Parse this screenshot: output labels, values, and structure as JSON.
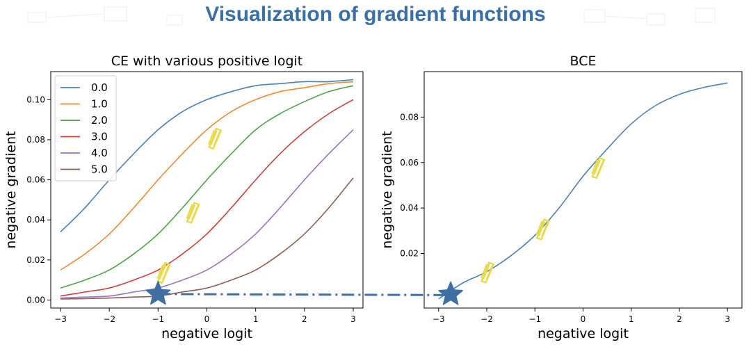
{
  "slide": {
    "title": "Visualization of gradient functions"
  },
  "colors": {
    "title": "#3a6fa5",
    "connector": "#3f6fa3",
    "star": "#3f6fa3",
    "highlight": "#e8d94a"
  },
  "chart_data": [
    {
      "type": "line",
      "title": "CE with various positive logit",
      "xlabel": "negative logit",
      "ylabel": "negative gradient",
      "xlim": [
        -3.2,
        3.2
      ],
      "ylim": [
        -0.004,
        0.114
      ],
      "xticks": [
        -3,
        -2,
        -1,
        0,
        1,
        2,
        3
      ],
      "xtick_labels": [
        "−3",
        "−2",
        "−1",
        "0",
        "1",
        "2",
        "3"
      ],
      "yticks": [
        0.0,
        0.02,
        0.04,
        0.06,
        0.08,
        0.1
      ],
      "ytick_labels": [
        "0.00",
        "0.02",
        "0.04",
        "0.06",
        "0.08",
        "0.10"
      ],
      "legend": {
        "placement": "upper-left",
        "title": ""
      },
      "x": [
        -3,
        -2.5,
        -2,
        -1.5,
        -1,
        -0.5,
        0,
        0.5,
        1,
        1.5,
        2,
        2.5,
        3
      ],
      "series": [
        {
          "name": "0.0",
          "color": "#4a80b4",
          "values": [
            0.034,
            0.046,
            0.06,
            0.073,
            0.085,
            0.094,
            0.1,
            0.104,
            0.107,
            0.108,
            0.109,
            0.109,
            0.11
          ]
        },
        {
          "name": "1.0",
          "color": "#ee8b34",
          "values": [
            0.015,
            0.023,
            0.033,
            0.046,
            0.06,
            0.073,
            0.085,
            0.094,
            0.1,
            0.104,
            0.106,
            0.108,
            0.109
          ]
        },
        {
          "name": "2.0",
          "color": "#4ea346",
          "values": [
            0.006,
            0.01,
            0.015,
            0.023,
            0.033,
            0.046,
            0.06,
            0.073,
            0.085,
            0.093,
            0.099,
            0.104,
            0.107
          ]
        },
        {
          "name": "3.0",
          "color": "#c8413c",
          "values": [
            0.002,
            0.004,
            0.006,
            0.01,
            0.015,
            0.023,
            0.033,
            0.046,
            0.06,
            0.073,
            0.084,
            0.093,
            0.1
          ]
        },
        {
          "name": "4.0",
          "color": "#9b72bf",
          "values": [
            0.001,
            0.0015,
            0.002,
            0.004,
            0.006,
            0.01,
            0.015,
            0.023,
            0.033,
            0.046,
            0.06,
            0.073,
            0.085
          ]
        },
        {
          "name": "5.0",
          "color": "#8c5e52",
          "values": [
            0.0005,
            0.0007,
            0.001,
            0.0015,
            0.002,
            0.004,
            0.006,
            0.01,
            0.015,
            0.023,
            0.033,
            0.046,
            0.061
          ]
        }
      ],
      "markers": [
        {
          "type": "star",
          "x": -1.0,
          "y": 0.003
        },
        {
          "type": "highlight",
          "x": -0.9,
          "y": 0.014
        },
        {
          "type": "highlight",
          "x": -0.3,
          "y": 0.044
        },
        {
          "type": "highlight",
          "x": 0.15,
          "y": 0.081
        }
      ]
    },
    {
      "type": "line",
      "title": "BCE",
      "xlabel": "negative logit",
      "ylabel": "negative gradient",
      "xlim": [
        -3.3,
        3.3
      ],
      "ylim": [
        -0.004,
        0.1
      ],
      "xticks": [
        -3,
        -2,
        -1,
        0,
        1,
        2,
        3
      ],
      "xtick_labels": [
        "−3",
        "−2",
        "−1",
        "0",
        "1",
        "2",
        "3"
      ],
      "yticks": [
        0.02,
        0.04,
        0.06,
        0.08
      ],
      "ytick_labels": [
        "0.02",
        "0.04",
        "0.06",
        "0.08"
      ],
      "x": [
        -3,
        -2.5,
        -2,
        -1.5,
        -1,
        -0.5,
        0,
        0.5,
        1,
        1.5,
        2,
        2.5,
        3
      ],
      "series": [
        {
          "name": "",
          "color": "#4a80b4",
          "values": [
            0.0,
            0.007,
            0.012,
            0.019,
            0.028,
            0.04,
            0.054,
            0.066,
            0.077,
            0.085,
            0.09,
            0.093,
            0.095
          ]
        }
      ],
      "markers": [
        {
          "type": "star",
          "x": -2.75,
          "y": 0.002
        },
        {
          "type": "highlight",
          "x": -2.0,
          "y": 0.012
        },
        {
          "type": "highlight",
          "x": -0.85,
          "y": 0.031
        },
        {
          "type": "highlight",
          "x": 0.3,
          "y": 0.058
        }
      ]
    }
  ]
}
